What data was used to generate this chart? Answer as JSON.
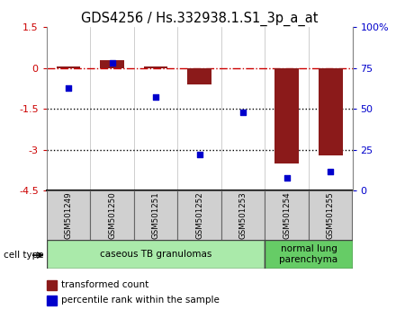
{
  "title": "GDS4256 / Hs.332938.1.S1_3p_a_at",
  "samples": [
    "GSM501249",
    "GSM501250",
    "GSM501251",
    "GSM501252",
    "GSM501253",
    "GSM501254",
    "GSM501255"
  ],
  "transformed_count": [
    0.05,
    0.3,
    0.06,
    -0.6,
    -0.02,
    -3.5,
    -3.2
  ],
  "percentile_rank": [
    63,
    78,
    57,
    22,
    48,
    8,
    12
  ],
  "left_ylim": [
    -4.5,
    1.5
  ],
  "left_yticks": [
    1.5,
    0,
    -1.5,
    -3,
    -4.5
  ],
  "right_ylim": [
    0,
    100
  ],
  "right_yticks": [
    0,
    25,
    50,
    75,
    100
  ],
  "right_yticklabels": [
    "0",
    "25",
    "50",
    "75",
    "100%"
  ],
  "bar_color": "#8B1A1A",
  "scatter_color": "#0000CC",
  "dash_line_color": "#CC0000",
  "dotted_line_color": "#000000",
  "cell_type_groups": [
    {
      "label": "caseous TB granulomas",
      "samples": [
        0,
        1,
        2,
        3,
        4
      ],
      "color": "#AAEAAA"
    },
    {
      "label": "normal lung\nparenchyma",
      "samples": [
        5,
        6
      ],
      "color": "#66CC66"
    }
  ],
  "cell_type_label": "cell type",
  "legend_items": [
    {
      "label": "transformed count",
      "color": "#8B1A1A"
    },
    {
      "label": "percentile rank within the sample",
      "color": "#0000CC"
    }
  ],
  "bar_width": 0.55,
  "title_fontsize": 10.5,
  "tick_fontsize": 8,
  "sample_box_color": "#D0D0D0",
  "sample_box_edge": "#888888"
}
